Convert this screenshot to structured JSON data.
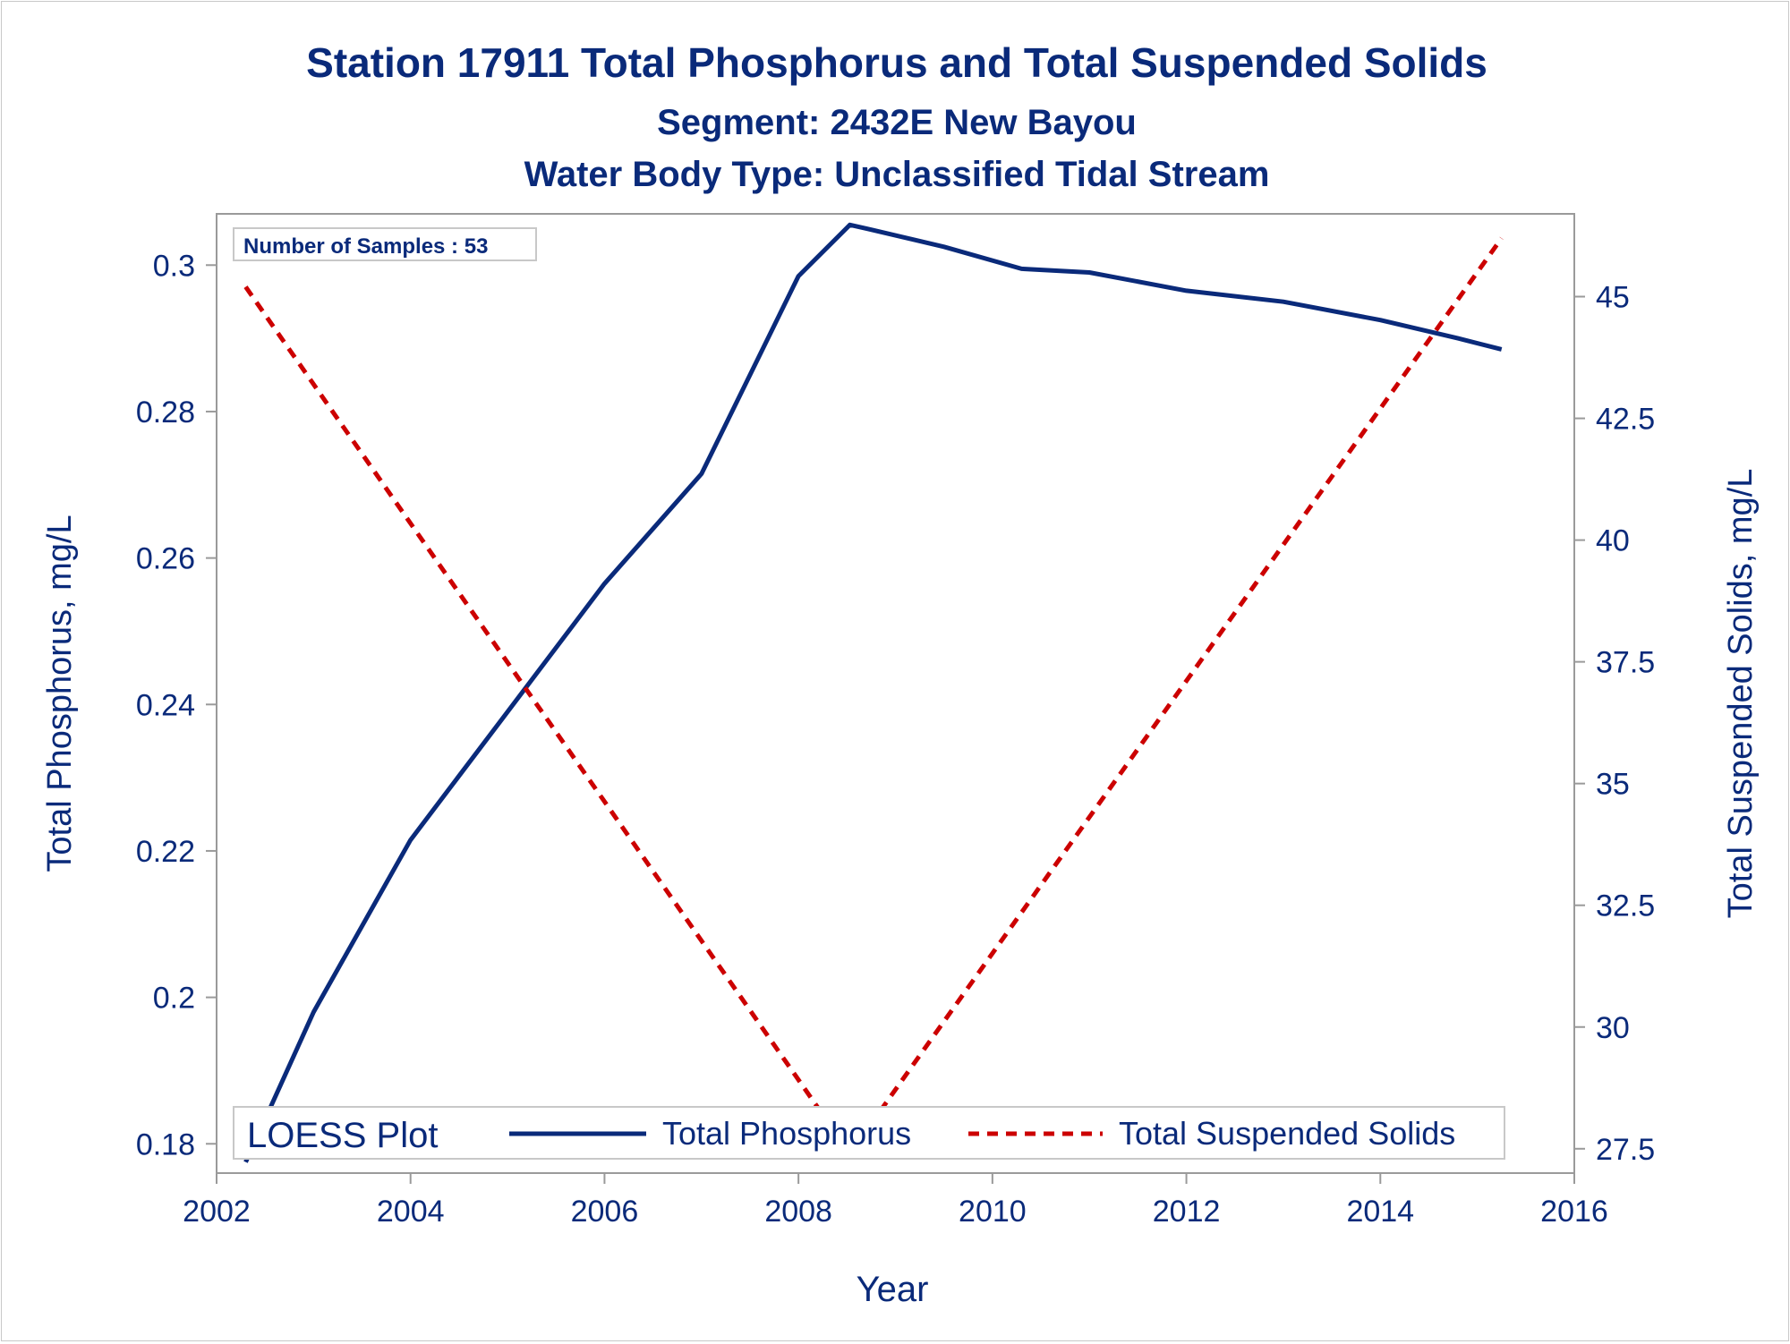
{
  "chart_data": {
    "type": "line",
    "title": "Station 17911  Total Phosphorus and Total Suspended Solids",
    "subtitle": "Segment: 2432E  New Bayou",
    "subtitle2": "Water Body Type: Unclassified Tidal Stream",
    "xlabel": "Year",
    "ylabel": "Total Phosphorus, mg/L",
    "y2label": "Total Suspended Solids, mg/L",
    "xlim": [
      2002,
      2016
    ],
    "ylim": [
      0.176,
      0.307
    ],
    "y2lim": [
      27.0,
      46.7
    ],
    "xticks": [
      2002,
      2004,
      2006,
      2008,
      2010,
      2012,
      2014,
      2016
    ],
    "yticks": [
      0.18,
      0.2,
      0.22,
      0.24,
      0.26,
      0.28,
      0.3
    ],
    "yticklabels": [
      "0.18",
      "0.2",
      "0.22",
      "0.24",
      "0.26",
      "0.28",
      "0.3"
    ],
    "y2ticks": [
      27.5,
      30,
      32.5,
      35,
      37.5,
      40,
      42.5,
      45
    ],
    "y2ticklabels": [
      "27.5",
      "30",
      "32.5",
      "35",
      "37.5",
      "40",
      "42.5",
      "45"
    ],
    "annotation": "Number of Samples : 53",
    "legend": {
      "title": "LOESS Plot",
      "position": "bottom-inside"
    },
    "series": [
      {
        "name": "Total Phosphorus",
        "axis": "left",
        "color": "#0a2a7a",
        "style": "solid",
        "x": [
          2002.3,
          2003.0,
          2004.0,
          2005.0,
          2006.0,
          2007.0,
          2008.0,
          2008.53,
          2008.7,
          2009.5,
          2010.3,
          2011.0,
          2012.0,
          2013.0,
          2014.0,
          2014.8,
          2015.25
        ],
        "y": [
          0.1775,
          0.198,
          0.2215,
          0.239,
          0.2565,
          0.2715,
          0.2985,
          0.3055,
          0.305,
          0.3025,
          0.2995,
          0.299,
          0.2965,
          0.295,
          0.2925,
          0.29,
          0.2885
        ]
      },
      {
        "name": "Total Suspended Solids",
        "axis": "right",
        "color": "#cc0000",
        "style": "dashed",
        "x": [
          2002.3,
          2008.53,
          2015.25
        ],
        "y": [
          45.2,
          27.4,
          46.2
        ]
      }
    ]
  }
}
